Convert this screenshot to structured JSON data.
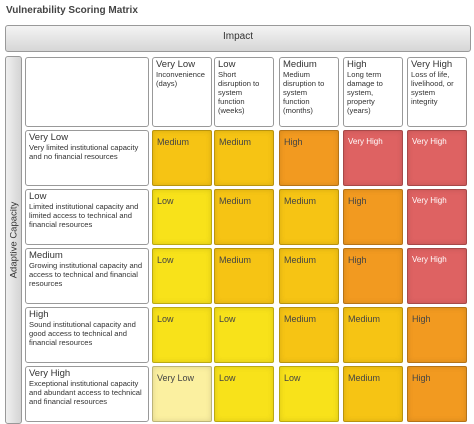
{
  "title": "Vulnerability Scoring Matrix",
  "impact_label": "Impact",
  "capacity_label": "Adaptive Capacity",
  "columns": [
    {
      "heading": "Very Low",
      "description": "Inconvenience (days)"
    },
    {
      "heading": "Low",
      "description": "Short disruption to system function (weeks)"
    },
    {
      "heading": "Medium",
      "description": "Medium disruption to system function (months)"
    },
    {
      "heading": "High",
      "description": "Long term damage to system, property (years)"
    },
    {
      "heading": "Very High",
      "description": "Loss of life, livelihood, or system integrity"
    }
  ],
  "rows": [
    {
      "heading": "Very Low",
      "description": "Very limited institutional capacity and no financial resources",
      "cells": [
        {
          "label": "Medium",
          "color": "#f6c414"
        },
        {
          "label": "Medium",
          "color": "#f6c414"
        },
        {
          "label": "High",
          "color": "#f29a20"
        },
        {
          "label": "Very High",
          "color": "#de6262"
        },
        {
          "label": "Very High",
          "color": "#de6262"
        }
      ]
    },
    {
      "heading": "Low",
      "description": "Limited institutional capacity and limited access to technical and financial resources",
      "cells": [
        {
          "label": "Low",
          "color": "#f8e21a"
        },
        {
          "label": "Medium",
          "color": "#f6c414"
        },
        {
          "label": "Medium",
          "color": "#f6c414"
        },
        {
          "label": "High",
          "color": "#f29a20"
        },
        {
          "label": "Very High",
          "color": "#de6262"
        }
      ]
    },
    {
      "heading": "Medium",
      "description": "Growing institutional capacity and access to technical and financial resources",
      "cells": [
        {
          "label": "Low",
          "color": "#f8e21a"
        },
        {
          "label": "Medium",
          "color": "#f6c414"
        },
        {
          "label": "Medium",
          "color": "#f6c414"
        },
        {
          "label": "High",
          "color": "#f29a20"
        },
        {
          "label": "Very High",
          "color": "#de6262"
        }
      ]
    },
    {
      "heading": "High",
      "description": "Sound institutional capacity and good access to technical and financial resources",
      "cells": [
        {
          "label": "Low",
          "color": "#f8e21a"
        },
        {
          "label": "Low",
          "color": "#f8e21a"
        },
        {
          "label": "Medium",
          "color": "#f6c414"
        },
        {
          "label": "Medium",
          "color": "#f6c414"
        },
        {
          "label": "High",
          "color": "#f29a20"
        }
      ]
    },
    {
      "heading": "Very High",
      "description": "Exceptional institutional capacity and abundant access to technical and financial resources",
      "cells": [
        {
          "label": "Very Low",
          "color": "#fbf0a0"
        },
        {
          "label": "Low",
          "color": "#f8e21a"
        },
        {
          "label": "Low",
          "color": "#f8e21a"
        },
        {
          "label": "Medium",
          "color": "#f6c414"
        },
        {
          "label": "High",
          "color": "#f29a20"
        }
      ]
    }
  ]
}
